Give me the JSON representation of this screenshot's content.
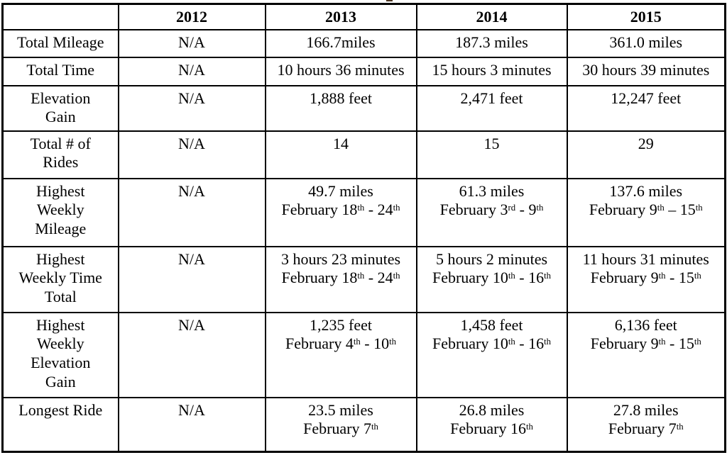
{
  "table": {
    "columns": [
      "",
      "2012",
      "2013",
      "2014",
      "2015"
    ],
    "rows": [
      {
        "label": "Total Mileage",
        "cells": [
          "N/A",
          "166.7miles",
          "187.3 miles",
          "361.0 miles"
        ]
      },
      {
        "label": "Total Time",
        "cells": [
          "N/A",
          "10 hours 36 minutes",
          "15 hours 3 minutes",
          "30 hours 39 minutes"
        ]
      },
      {
        "label": "Elevation\nGain",
        "cells": [
          "N/A",
          "1,888 feet",
          "2,471 feet",
          "12,247 feet"
        ]
      },
      {
        "label": "Total # of\nRides",
        "cells": [
          "N/A",
          "14",
          "15",
          "29"
        ]
      },
      {
        "label": "Highest\nWeekly\nMileage",
        "cells": [
          "N/A",
          "49.7 miles\nFebruary 18^th^ - 24^th^",
          "61.3 miles\nFebruary 3^rd^ - 9^th^",
          "137.6 miles\nFebruary 9^th^ – 15^th^"
        ]
      },
      {
        "label": "Highest\nWeekly Time\nTotal",
        "cells": [
          "N/A",
          "3 hours 23 minutes\nFebruary 18^th^ - 24^th^",
          "5 hours 2 minutes\nFebruary 10^th^ - 16^th^",
          "11 hours 31 minutes\nFebruary 9^th^ - 15^th^"
        ]
      },
      {
        "label": "Highest\nWeekly\nElevation\nGain",
        "cells": [
          "N/A",
          "1,235 feet\nFebruary 4^th^ - 10^th^",
          "1,458 feet\nFebruary 10^th^ - 16^th^",
          "6,136 feet\nFebruary 9^th^ - 15^th^"
        ]
      },
      {
        "label": "Longest Ride",
        "cells": [
          "N/A",
          "23.5 miles\nFebruary 7^th^",
          "26.8 miles\nFebruary 16^th^",
          "27.8 miles\nFebruary 7^th^"
        ]
      }
    ]
  },
  "colors": {
    "border": "#000000",
    "background": "#ffffff",
    "text": "#000000"
  }
}
